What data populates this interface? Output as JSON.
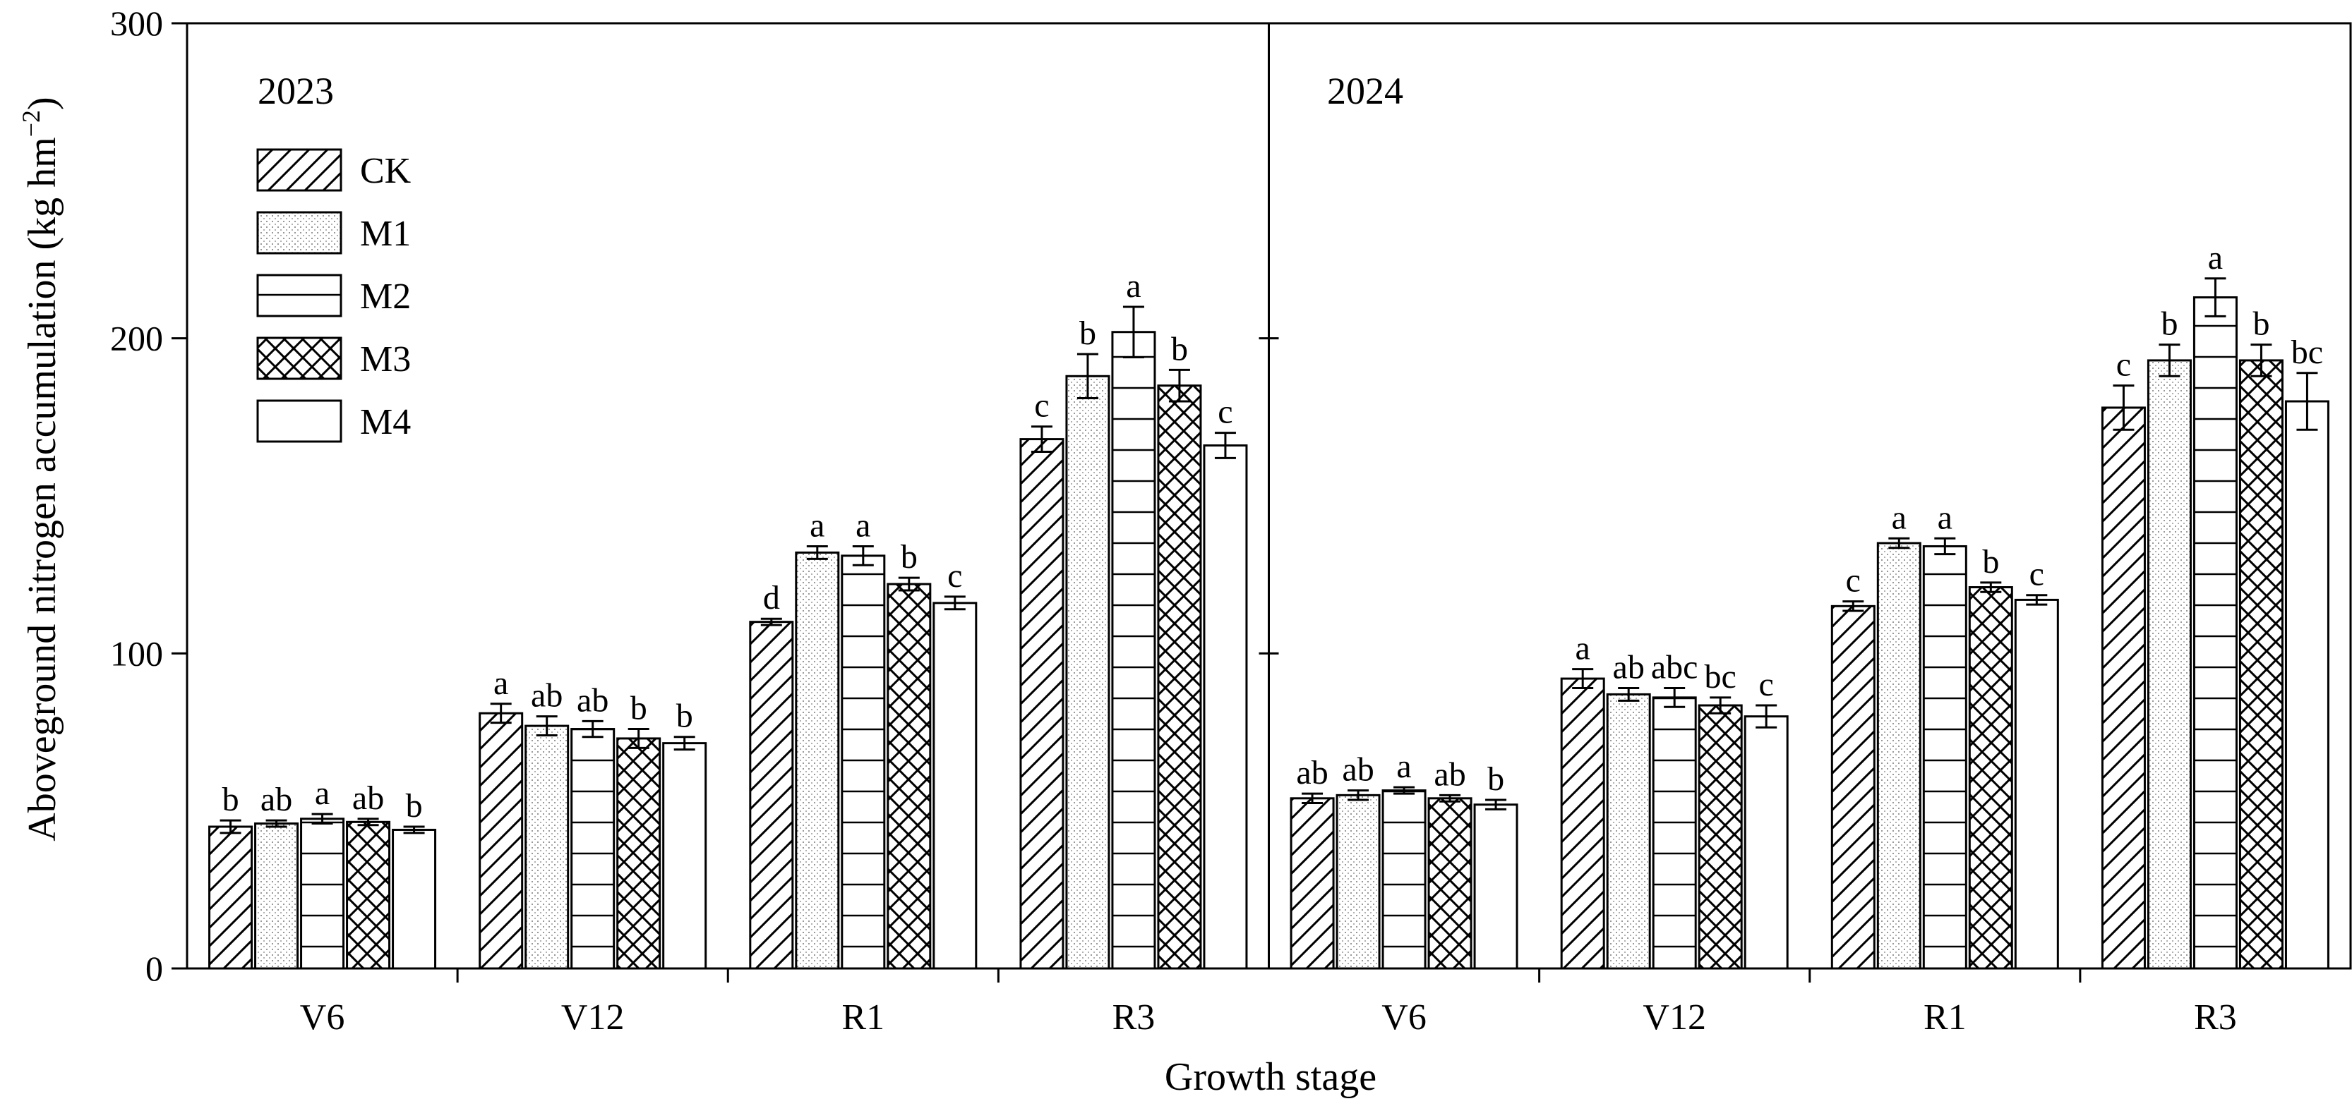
{
  "chart_data": {
    "type": "bar",
    "ylabel": "Aboveground nitrogen accumulation (kg hm",
    "ylabel_sup": "−2",
    "ylabel_end": ")",
    "xlabel": "Growth stage",
    "ylim": [
      0,
      300
    ],
    "yticks": [
      "0",
      "100",
      "200",
      "300"
    ],
    "ytick_values": [
      0,
      100,
      200,
      300
    ],
    "legend_position": "top-left",
    "grid": false,
    "series_names": [
      "CK",
      "M1",
      "M2",
      "M3",
      "M4"
    ],
    "series_patterns": [
      "diagonal",
      "dots",
      "horizontal",
      "crosshatch",
      "none"
    ],
    "panels": [
      {
        "label": "2023",
        "categories": [
          "V6",
          "V12",
          "R1",
          "R3"
        ],
        "series": [
          {
            "name": "CK",
            "values": [
              45,
              81,
              110,
              168
            ],
            "errors": [
              2,
              3,
              1,
              4
            ],
            "letters": [
              "b",
              "a",
              "d",
              "c"
            ]
          },
          {
            "name": "M1",
            "values": [
              46,
              77,
              132,
              188
            ],
            "errors": [
              1,
              3,
              2,
              7
            ],
            "letters": [
              "ab",
              "ab",
              "a",
              "b"
            ]
          },
          {
            "name": "M2",
            "values": [
              47.5,
              76,
              131,
              202
            ],
            "errors": [
              1.5,
              2.5,
              3,
              8
            ],
            "letters": [
              "a",
              "ab",
              "a",
              "a"
            ]
          },
          {
            "name": "M3",
            "values": [
              46.5,
              73,
              122,
              185
            ],
            "errors": [
              1,
              3,
              2,
              5
            ],
            "letters": [
              "ab",
              "b",
              "b",
              "b"
            ]
          },
          {
            "name": "M4",
            "values": [
              44,
              71.5,
              116,
              166
            ],
            "errors": [
              1,
              2,
              2,
              4
            ],
            "letters": [
              "b",
              "b",
              "c",
              "c"
            ]
          }
        ]
      },
      {
        "label": "2024",
        "categories": [
          "V6",
          "V12",
          "R1",
          "R3"
        ],
        "series": [
          {
            "name": "CK",
            "values": [
              54,
              92,
              115,
              178
            ],
            "errors": [
              1.5,
              3,
              1.5,
              7
            ],
            "letters": [
              "ab",
              "a",
              "c",
              "c"
            ]
          },
          {
            "name": "M1",
            "values": [
              55,
              87,
              135,
              193
            ],
            "errors": [
              1.5,
              2,
              1.5,
              5
            ],
            "letters": [
              "ab",
              "ab",
              "a",
              "b"
            ]
          },
          {
            "name": "M2",
            "values": [
              56.5,
              86,
              134,
              213
            ],
            "errors": [
              1,
              3,
              2.5,
              6
            ],
            "letters": [
              "a",
              "abc",
              "a",
              "a"
            ]
          },
          {
            "name": "M3",
            "values": [
              54,
              83.5,
              121,
              193
            ],
            "errors": [
              1,
              2.5,
              1.5,
              5
            ],
            "letters": [
              "ab",
              "bc",
              "b",
              "b"
            ]
          },
          {
            "name": "M4",
            "values": [
              52,
              80,
              117,
              180
            ],
            "errors": [
              1.5,
              3.5,
              1.5,
              9
            ],
            "letters": [
              "b",
              "c",
              "c",
              "bc"
            ]
          }
        ]
      }
    ]
  }
}
